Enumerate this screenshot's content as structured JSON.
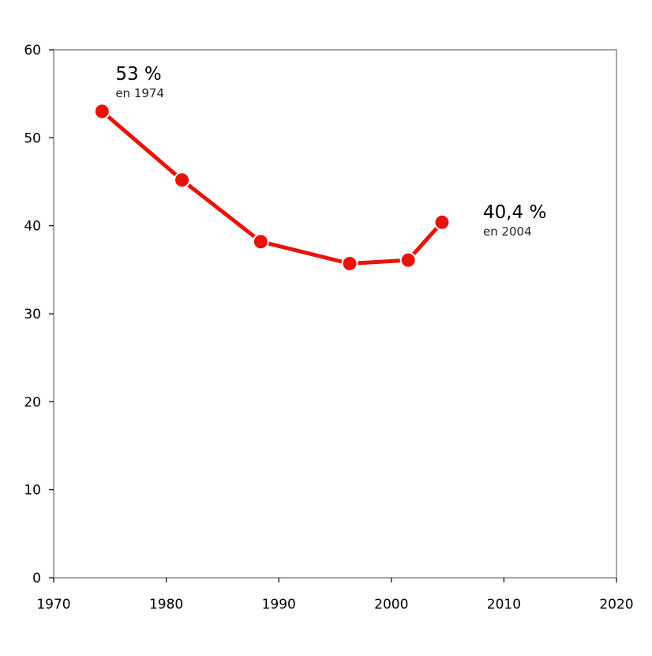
{
  "chart_data": {
    "type": "line",
    "title": "",
    "xlabel": "",
    "ylabel": "",
    "xlim": [
      1970,
      2020
    ],
    "ylim": [
      0,
      60
    ],
    "x_ticks": [
      1970,
      1980,
      1990,
      2000,
      2010,
      2020
    ],
    "y_ticks": [
      0,
      10,
      20,
      30,
      40,
      50,
      60
    ],
    "grid": false,
    "legend": "none",
    "series": [
      {
        "color": "#e8140c",
        "points": [
          {
            "x": 1974.3,
            "y": 53.0
          },
          {
            "x": 1981.4,
            "y": 45.2
          },
          {
            "x": 1988.4,
            "y": 38.2
          },
          {
            "x": 1996.3,
            "y": 35.7
          },
          {
            "x": 2001.5,
            "y": 36.1
          },
          {
            "x": 2004.5,
            "y": 40.4
          }
        ]
      }
    ],
    "annotations": [
      {
        "value_text": "53 %",
        "sub_text": "en 1974",
        "point_index": 0
      },
      {
        "value_text": "40,4 %",
        "sub_text": "en 2004",
        "point_index": 5
      }
    ]
  }
}
